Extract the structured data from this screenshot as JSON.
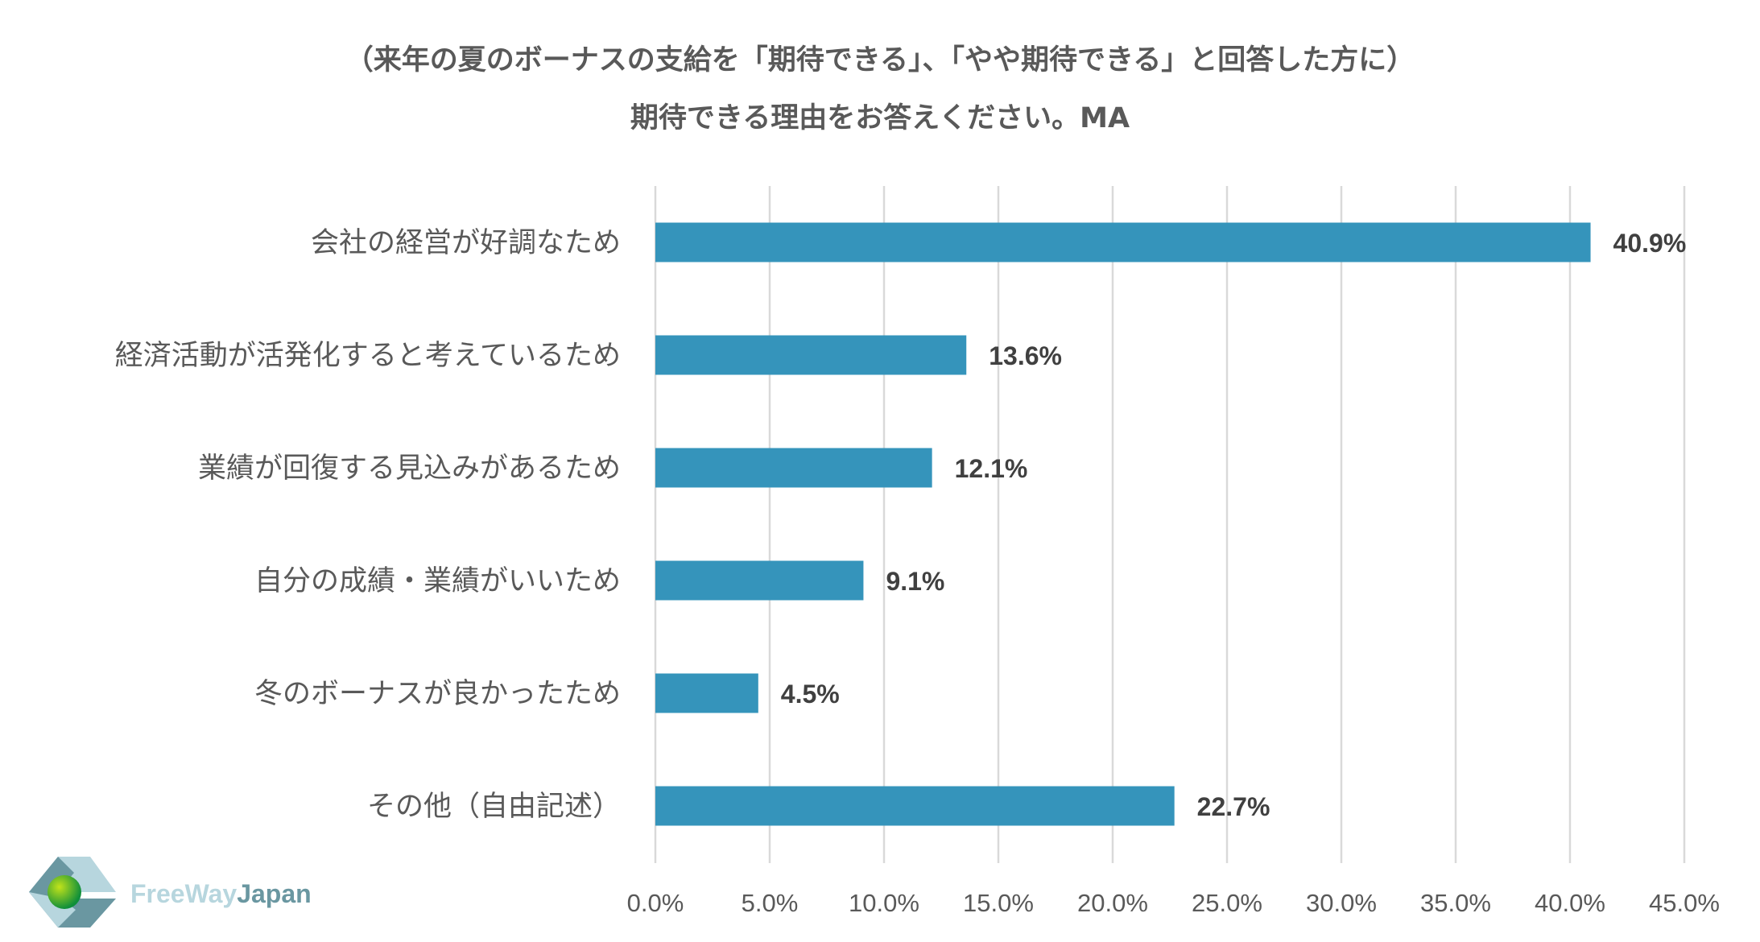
{
  "chart_data": {
    "type": "bar",
    "orientation": "horizontal",
    "title_line1": "（来年の夏のボーナスの支給を「期待できる」、「やや期待できる」と回答した方に）",
    "title_line2": "期待できる理由をお答えください。MA",
    "categories": [
      "会社の経営が好調なため",
      "経済活動が活発化すると考えているため",
      "業績が回復する見込みがあるため",
      "自分の成績・業績がいいため",
      "冬のボーナスが良かったため",
      "その他（自由記述）"
    ],
    "values": [
      40.9,
      13.6,
      12.1,
      9.1,
      4.5,
      22.7
    ],
    "value_labels": [
      "40.9%",
      "13.6%",
      "12.1%",
      "9.1%",
      "4.5%",
      "22.7%"
    ],
    "xlim": [
      0,
      45
    ],
    "xticks": [
      "0.0%",
      "5.0%",
      "10.0%",
      "15.0%",
      "20.0%",
      "25.0%",
      "30.0%",
      "35.0%",
      "40.0%",
      "45.0%"
    ],
    "grid": true,
    "bar_color": "#3594bb"
  },
  "logo": {
    "part1": "FreeWay",
    "part2": "Japan"
  }
}
